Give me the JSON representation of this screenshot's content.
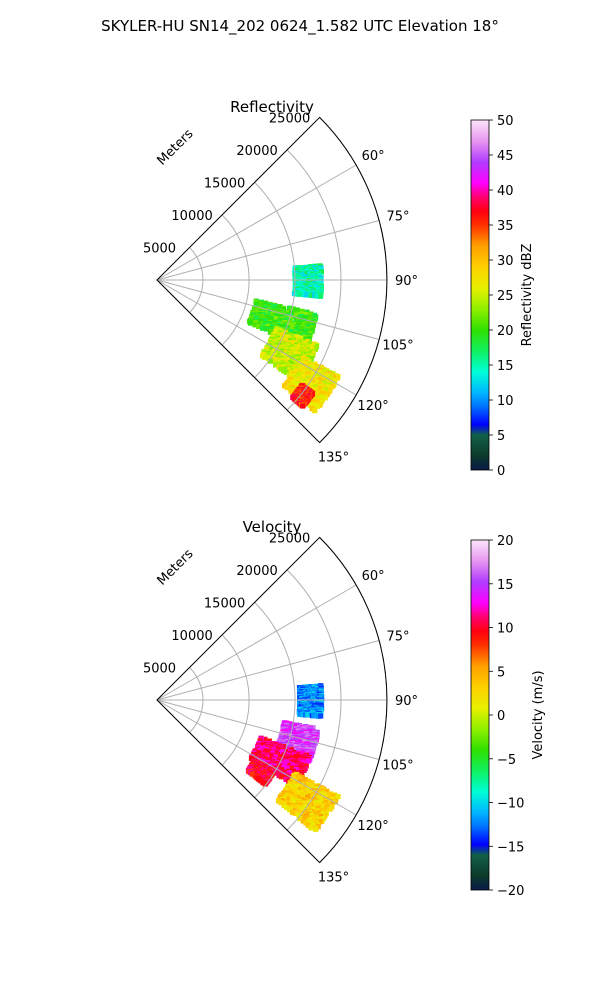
{
  "figure": {
    "title": "SKYLER-HU  SN14_202  0624_1.582 UTC Elevation 18°"
  },
  "chart_data": [
    {
      "type": "heatmap",
      "projection": "polar-sector",
      "title": "Reflectivity",
      "range_label": "Meters",
      "range_ticks": [
        "5000",
        "10000",
        "15000",
        "20000",
        "25000"
      ],
      "range_tick_values": [
        5000,
        10000,
        15000,
        20000,
        25000
      ],
      "angle_ticks": [
        "60°",
        "75°",
        "90°",
        "105°",
        "120°",
        "135°"
      ],
      "angle_tick_values": [
        60,
        75,
        90,
        105,
        120,
        135
      ],
      "angle_range": [
        45,
        135
      ],
      "range_limit": [
        0,
        25000
      ],
      "grid": true,
      "colorbar": {
        "label": "Reflectivity dBZ",
        "min": 0,
        "max": 50,
        "ticks": [
          "0",
          "5",
          "10",
          "15",
          "20",
          "25",
          "30",
          "35",
          "40",
          "45",
          "50"
        ],
        "tick_values": [
          0,
          5,
          10,
          15,
          20,
          25,
          30,
          35,
          40,
          45,
          50
        ]
      },
      "echo_regions": [
        {
          "az_range": [
            85,
            96
          ],
          "r_range": [
            15000,
            18000
          ],
          "value": 15
        },
        {
          "az_range": [
            102,
            115
          ],
          "r_range": [
            11000,
            18000
          ],
          "value": 20
        },
        {
          "az_range": [
            112,
            126
          ],
          "r_range": [
            14000,
            19000
          ],
          "value": 25
        },
        {
          "az_range": [
            118,
            130
          ],
          "r_range": [
            18000,
            22500
          ],
          "value": 27
        },
        {
          "az_range": [
            126,
            131
          ],
          "r_range": [
            19500,
            21000
          ],
          "value": 36
        }
      ]
    },
    {
      "type": "heatmap",
      "projection": "polar-sector",
      "title": "Velocity",
      "range_label": "Meters",
      "range_ticks": [
        "5000",
        "10000",
        "15000",
        "20000",
        "25000"
      ],
      "range_tick_values": [
        5000,
        10000,
        15000,
        20000,
        25000
      ],
      "angle_ticks": [
        "60°",
        "75°",
        "90°",
        "105°",
        "120°",
        "135°"
      ],
      "angle_tick_values": [
        60,
        75,
        90,
        105,
        120,
        135
      ],
      "angle_range": [
        45,
        135
      ],
      "range_limit": [
        0,
        25000
      ],
      "grid": true,
      "colorbar": {
        "label": "Velocity (m/s)",
        "min": -20,
        "max": 20,
        "ticks": [
          "−20",
          "−15",
          "−10",
          "−5",
          "0",
          "5",
          "10",
          "15",
          "20"
        ],
        "tick_values": [
          -20,
          -15,
          -10,
          -5,
          0,
          5,
          10,
          15,
          20
        ]
      },
      "echo_regions": [
        {
          "az_range": [
            85,
            96
          ],
          "r_range": [
            15500,
            18000
          ],
          "value": -12
        },
        {
          "az_range": [
            100,
            112
          ],
          "r_range": [
            14000,
            18000
          ],
          "value": 15
        },
        {
          "az_range": [
            110,
            122
          ],
          "r_range": [
            12000,
            18000
          ],
          "value": 11
        },
        {
          "az_range": [
            118,
            130
          ],
          "r_range": [
            17000,
            22500
          ],
          "value": 3
        },
        {
          "az_range": [
            122,
            128
          ],
          "r_range": [
            12500,
            15000
          ],
          "value": 10
        }
      ]
    }
  ]
}
